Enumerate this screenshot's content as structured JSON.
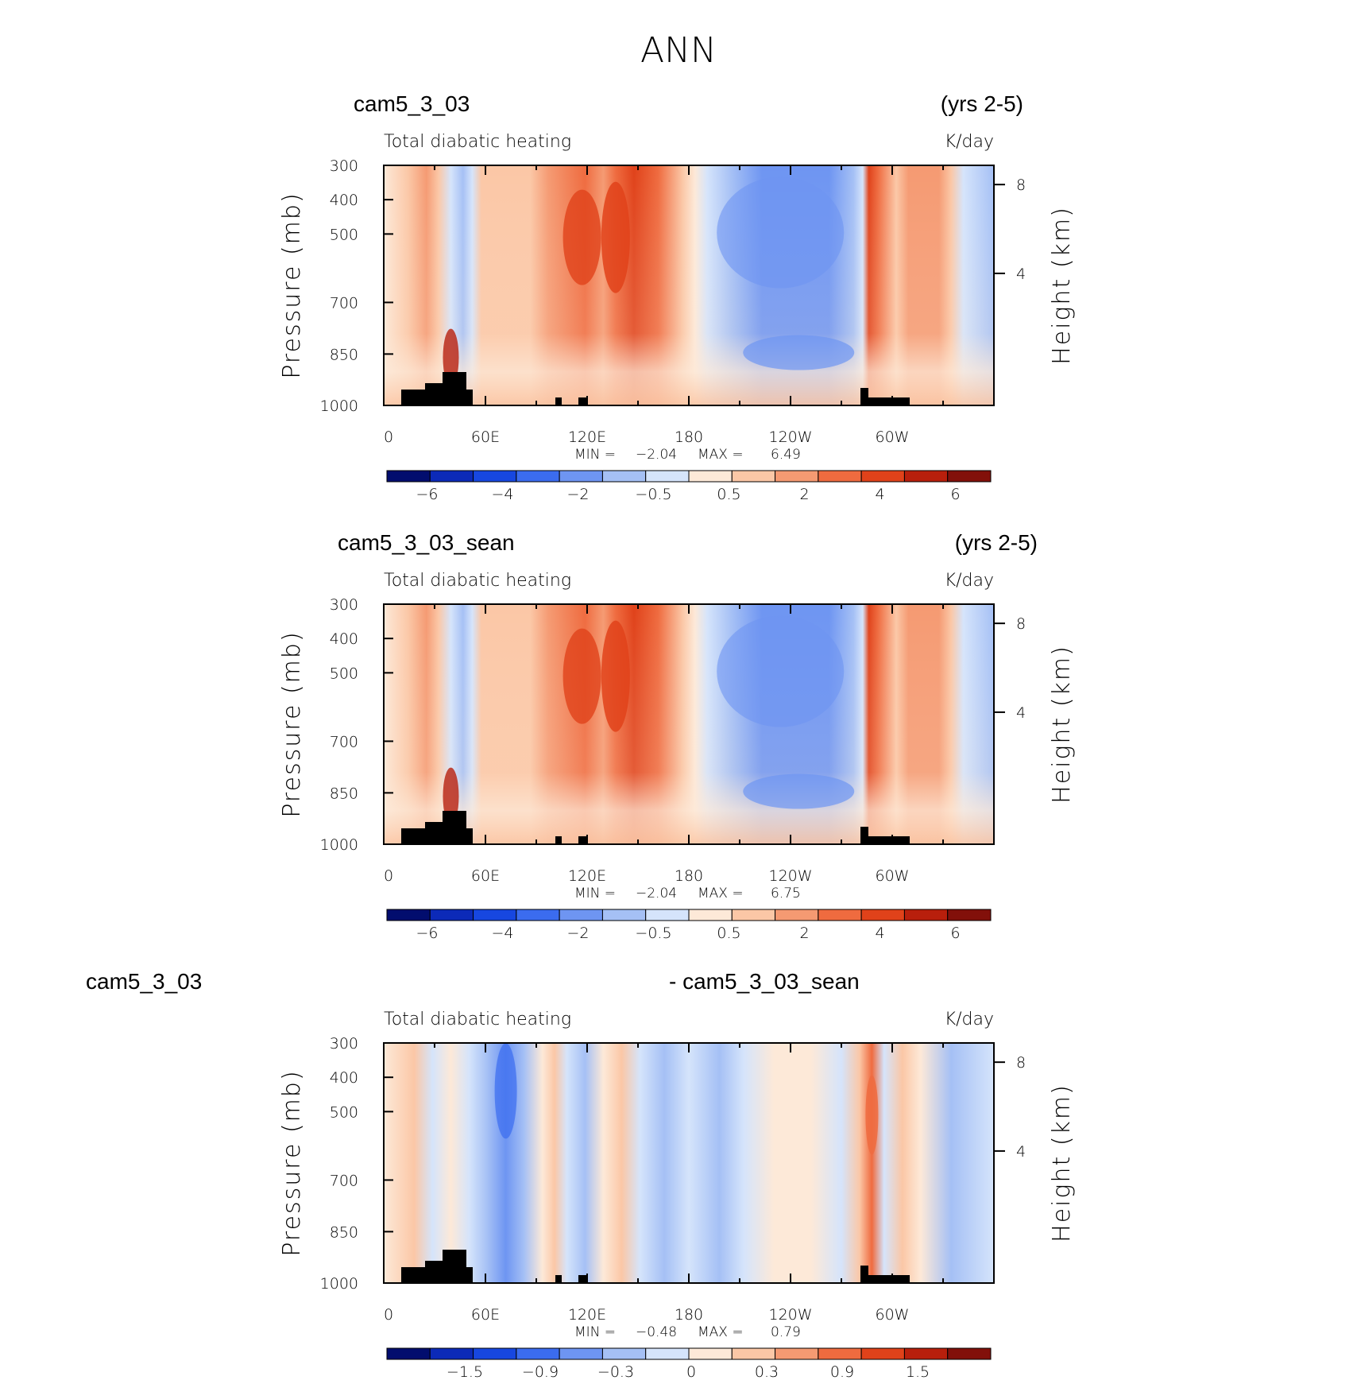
{
  "figure_title": "ANN",
  "chart_data": [
    {
      "type": "heatmap",
      "case_left": "cam5_3_03",
      "case_right": "(yrs 2-5)",
      "title": "Total diabatic heating",
      "units": "K/day",
      "xlabel": "",
      "ylabel": "Pressure (mb)",
      "ylabel_right": "Height (km)",
      "x_ticks": [
        "0",
        "60E",
        "120E",
        "180",
        "120W",
        "60W"
      ],
      "y_ticks": [
        "300",
        "400",
        "500",
        "700",
        "850",
        "1000"
      ],
      "y_right_ticks": [
        "8",
        "4"
      ],
      "min_label": "MIN =",
      "min_value": "−2.04",
      "max_label": "MAX =",
      "max_value": "6.49",
      "colorbar_labels": [
        "−6",
        "−4",
        "−2",
        "−0.5",
        "0.5",
        "2",
        "4",
        "6"
      ],
      "colorbar_range": [
        -7,
        7
      ]
    },
    {
      "type": "heatmap",
      "case_left": "cam5_3_03_sean",
      "case_right": "(yrs 2-5)",
      "title": "Total diabatic heating",
      "units": "K/day",
      "xlabel": "",
      "ylabel": "Pressure (mb)",
      "ylabel_right": "Height (km)",
      "x_ticks": [
        "0",
        "60E",
        "120E",
        "180",
        "120W",
        "60W"
      ],
      "y_ticks": [
        "300",
        "400",
        "500",
        "700",
        "850",
        "1000"
      ],
      "y_right_ticks": [
        "8",
        "4"
      ],
      "min_label": "MIN =",
      "min_value": "−2.04",
      "max_label": "MAX =",
      "max_value": "6.75",
      "colorbar_labels": [
        "−6",
        "−4",
        "−2",
        "−0.5",
        "0.5",
        "2",
        "4",
        "6"
      ],
      "colorbar_range": [
        -7,
        7
      ]
    },
    {
      "type": "heatmap",
      "case_left": "cam5_3_03",
      "case_right": "- cam5_3_03_sean",
      "title": "Total diabatic heating",
      "units": "K/day",
      "xlabel": "",
      "ylabel": "Pressure (mb)",
      "ylabel_right": "Height (km)",
      "x_ticks": [
        "0",
        "60E",
        "120E",
        "180",
        "120W",
        "60W"
      ],
      "y_ticks": [
        "300",
        "400",
        "500",
        "700",
        "850",
        "1000"
      ],
      "y_right_ticks": [
        "8",
        "4"
      ],
      "min_label": "MIN =",
      "min_value": "−0.48",
      "max_label": "MAX =",
      "max_value": "0.79",
      "colorbar_labels": [
        "−1.5",
        "−0.9",
        "−0.3",
        "0",
        "0.3",
        "0.9",
        "1.5"
      ],
      "colorbar_range": [
        -2,
        2
      ]
    }
  ],
  "colorbar_colors": [
    "#020d6e",
    "#0c2ab8",
    "#1747e0",
    "#3b6cef",
    "#6e95f2",
    "#a5c0f5",
    "#d5e4fb",
    "#fde9d8",
    "#fbc7a6",
    "#f59a72",
    "#ef6b3f",
    "#e0421a",
    "#b81f0c",
    "#82100a"
  ]
}
